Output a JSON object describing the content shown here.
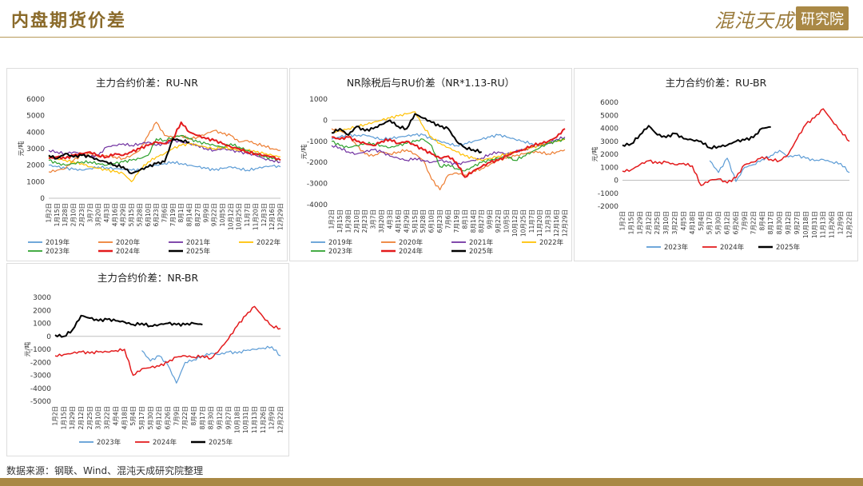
{
  "header": {
    "title": "内盘期货价差",
    "logo_text": "混沌天成",
    "logo_box": "研究院"
  },
  "footer": {
    "source": "数据来源：钢联、Wind、混沌天成研究院整理"
  },
  "colors": {
    "2019": "#5b9bd5",
    "2020": "#ed7d31",
    "2021": "#7030a0",
    "2022": "#ffc000",
    "2023": "#2ca02c",
    "2024": "#e31a1c",
    "2025": "#000000",
    "2023b": "#5b9bd5"
  },
  "chart_data": [
    {
      "type": "line",
      "title": "主力合约价差：RU-NR",
      "ylabel": "元/吨",
      "ylim": [
        0,
        6000
      ],
      "yticks": [
        "6000",
        "5000",
        "4000",
        "3000",
        "2000",
        "1000",
        "0"
      ],
      "xticks": [
        "1月2日",
        "1月15日",
        "1月28日",
        "2月10日",
        "2月23日",
        "3月7日",
        "3月20日",
        "4月3日",
        "4月16日",
        "4月29日",
        "5月15日",
        "5月28日",
        "6月10日",
        "6月23日",
        "7月6日",
        "7月19日",
        "8月1日",
        "8月14日",
        "8月27日",
        "9月9日",
        "9月22日",
        "10月5日",
        "10月12日",
        "10月25日",
        "11月7日",
        "11月20日",
        "12月3日",
        "12月16日",
        "12月29日"
      ],
      "legend": "bottom",
      "series": [
        {
          "name": "2019年",
          "color": "#5b9bd5",
          "values": [
            2000,
            1900,
            1800,
            1750,
            1700,
            1800,
            1900,
            1850,
            1800,
            1750,
            1700,
            1700,
            1900,
            2000,
            2100,
            2200,
            2100,
            2000,
            1900,
            1800,
            1700,
            1800,
            1900,
            1800,
            1700,
            1800,
            1900,
            1950,
            1900
          ],
          "width": 1.2
        },
        {
          "name": "2020年",
          "color": "#ed7d31",
          "values": [
            1600,
            1700,
            1800,
            2300,
            2600,
            2700,
            2500,
            2600,
            2500,
            2400,
            2600,
            2900,
            3800,
            4600,
            3800,
            3700,
            3800,
            3600,
            3700,
            3900,
            4100,
            3900,
            3800,
            3400,
            3500,
            3300,
            3200,
            3000,
            2900
          ],
          "width": 1.2
        },
        {
          "name": "2021年",
          "color": "#7030a0",
          "values": [
            2900,
            2800,
            2700,
            2800,
            2700,
            2500,
            2600,
            3100,
            3200,
            3300,
            3200,
            3300,
            3400,
            3200,
            3300,
            3500,
            3400,
            3300,
            3200,
            3000,
            2900,
            3000,
            2900,
            2800,
            2700,
            2600,
            2400,
            2300,
            2200
          ],
          "width": 1.2
        },
        {
          "name": "2022年",
          "color": "#ffc000",
          "values": [
            2500,
            2400,
            2300,
            2200,
            2100,
            1900,
            1800,
            1700,
            1600,
            1500,
            1000,
            1700,
            2200,
            2500,
            2700,
            3000,
            3200,
            3300,
            3200,
            3100,
            3000,
            3100,
            3000,
            2900,
            2900,
            2800,
            2700,
            2600,
            2500
          ],
          "width": 1.2
        },
        {
          "name": "2023年",
          "color": "#2ca02c",
          "values": [
            2300,
            2100,
            2000,
            2100,
            2200,
            2200,
            2100,
            2000,
            2100,
            2200,
            2300,
            2400,
            2600,
            3600,
            3500,
            3700,
            3800,
            3600,
            3400,
            3300,
            3200,
            3100,
            3300,
            3100,
            2900,
            2700,
            2500,
            2400,
            2300
          ],
          "width": 1.2
        },
        {
          "name": "2024年",
          "color": "#e31a1c",
          "values": [
            2400,
            2500,
            2400,
            2600,
            2700,
            2800,
            2600,
            2500,
            2700,
            2600,
            2800,
            3000,
            3200,
            3400,
            3300,
            3600,
            4600,
            4000,
            3800,
            3600,
            3500,
            3300,
            3100,
            3000,
            2800,
            2700,
            2600,
            2500,
            2300
          ],
          "width": 2
        },
        {
          "name": "2025年",
          "color": "#000000",
          "values": [
            2600,
            2400,
            2700,
            2500,
            2600,
            2500,
            2300,
            2200,
            2000,
            1900,
            1500,
            1700,
            1900,
            2100,
            2200,
            3600,
            3500,
            3400,
            null,
            null,
            null,
            null,
            null,
            null,
            null,
            null,
            null,
            null,
            null
          ],
          "width": 2
        }
      ]
    },
    {
      "type": "line",
      "title": "NR除税后与RU价差（NR*1.13-RU）",
      "ylabel": "元/吨",
      "ylim": [
        -4000,
        1000
      ],
      "yticks": [
        "1000",
        "0",
        "-1000",
        "-2000",
        "-3000",
        "-4000"
      ],
      "xticks": [
        "1月2日",
        "1月15日",
        "1月28日",
        "2月10日",
        "2月23日",
        "3月7日",
        "3月20日",
        "4月3日",
        "4月16日",
        "4月29日",
        "5月15日",
        "5月28日",
        "6月10日",
        "6月23日",
        "7月6日",
        "7月19日",
        "8月1日",
        "8月14日",
        "8月27日",
        "9月9日",
        "9月22日",
        "10月5日",
        "10月12日",
        "10月25日",
        "11月7日",
        "11月20日",
        "12月3日",
        "12月16日",
        "12月29日"
      ],
      "legend": "bottom",
      "series": [
        {
          "name": "2019年",
          "color": "#5b9bd5",
          "values": [
            -900,
            -800,
            -700,
            -750,
            -700,
            -800,
            -900,
            -850,
            -800,
            -750,
            -700,
            -700,
            -900,
            -1000,
            -1100,
            -1200,
            -1100,
            -1000,
            -900,
            -800,
            -700,
            -800,
            -900,
            -1000,
            -1100,
            -1200,
            -1100,
            -1000,
            -900
          ],
          "width": 1.2
        },
        {
          "name": "2020年",
          "color": "#ed7d31",
          "values": [
            -400,
            -500,
            -700,
            -1200,
            -1600,
            -1700,
            -1500,
            -1600,
            -1500,
            -1400,
            -1600,
            -1900,
            -2800,
            -3300,
            -2600,
            -2500,
            -2600,
            -2400,
            -2300,
            -2100,
            -1900,
            -1800,
            -1700,
            -1600,
            -1500,
            -1500,
            -1600,
            -1500,
            -1400
          ],
          "width": 1.2
        },
        {
          "name": "2021年",
          "color": "#7030a0",
          "values": [
            -1200,
            -1300,
            -1500,
            -1600,
            -1500,
            -1400,
            -1500,
            -1700,
            -1800,
            -1900,
            -1800,
            -1900,
            -2000,
            -1900,
            -2000,
            -2100,
            -2000,
            -1900,
            -1800,
            -1600,
            -1500,
            -1600,
            -1500,
            -1400,
            -1300,
            -1200,
            -1100,
            -900,
            -800
          ],
          "width": 1.2
        },
        {
          "name": "2022年",
          "color": "#ffc000",
          "values": [
            -600,
            -500,
            -400,
            -300,
            -200,
            -100,
            0,
            100,
            200,
            300,
            400,
            -300,
            -800,
            -1100,
            -1300,
            -1500,
            -1700,
            -1800,
            -1900,
            -1800,
            -1700,
            -1600,
            -1500,
            -1400,
            -1300,
            -1200,
            -1100,
            -1000,
            -900
          ],
          "width": 1.2
        },
        {
          "name": "2023年",
          "color": "#2ca02c",
          "values": [
            -1000,
            -1200,
            -1300,
            -1200,
            -1100,
            -1100,
            -1200,
            -1300,
            -1200,
            -1100,
            -1000,
            -900,
            -1200,
            -2200,
            -2100,
            -2300,
            -2400,
            -2200,
            -2000,
            -1900,
            -1800,
            -1700,
            -1900,
            -1700,
            -1500,
            -1300,
            -1100,
            -1000,
            -900
          ],
          "width": 1.2
        },
        {
          "name": "2024年",
          "color": "#e31a1c",
          "values": [
            -800,
            -900,
            -800,
            -1000,
            -1100,
            -1200,
            -1000,
            -900,
            -1100,
            -1000,
            -1200,
            -1400,
            -1600,
            -1800,
            -1700,
            -2000,
            -2700,
            -2400,
            -2200,
            -2000,
            -1900,
            -1700,
            -1500,
            -1400,
            -1200,
            -1100,
            -1000,
            -800,
            -400
          ],
          "width": 2
        },
        {
          "name": "2025年",
          "color": "#000000",
          "values": [
            -600,
            -400,
            -700,
            -300,
            -500,
            -400,
            -200,
            0,
            -300,
            -400,
            300,
            100,
            -100,
            -300,
            -400,
            -1000,
            -1300,
            -1400,
            -1500,
            null,
            null,
            null,
            null,
            null,
            null,
            null,
            null,
            null,
            null
          ],
          "width": 2
        }
      ]
    },
    {
      "type": "line",
      "title": "主力合约价差：RU-BR",
      "ylabel": "元/吨",
      "ylim": [
        -2000,
        6000
      ],
      "yticks": [
        "6000",
        "5000",
        "4000",
        "3000",
        "2000",
        "1000",
        "0",
        "-1000",
        "-2000"
      ],
      "xticks": [
        "1月2日",
        "1月15日",
        "1月29日",
        "2月12日",
        "2月25日",
        "3月10日",
        "3月22日",
        "4月5日",
        "4月18日",
        "5月4日",
        "5月17日",
        "5月30日",
        "6月12日",
        "6月26日",
        "7月9日",
        "7月22日",
        "8月4日",
        "8月17日",
        "8月30日",
        "9月12日",
        "9月27日",
        "10月18日",
        "10月31日",
        "11月13日",
        "11月26日",
        "12月9日",
        "12月22日"
      ],
      "legend": "bottom",
      "series": [
        {
          "name": "2023年",
          "color": "#5b9bd5",
          "values": [
            null,
            null,
            null,
            null,
            null,
            null,
            null,
            null,
            null,
            null,
            1500,
            600,
            1700,
            -100,
            1000,
            1200,
            1600,
            1900,
            2300,
            1800,
            1900,
            1700,
            1500,
            1600,
            1400,
            1300,
            600
          ],
          "width": 1.2
        },
        {
          "name": "2024年",
          "color": "#e31a1c",
          "values": [
            700,
            800,
            1200,
            1500,
            1300,
            1400,
            1200,
            1300,
            1100,
            -400,
            0,
            100,
            -200,
            200,
            1200,
            1400,
            1800,
            1600,
            1500,
            2000,
            3200,
            4300,
            4800,
            5500,
            4600,
            3800,
            3000
          ],
          "width": 1.5
        },
        {
          "name": "2025年",
          "color": "#000000",
          "values": [
            2700,
            2800,
            3500,
            4200,
            3500,
            3300,
            3600,
            3200,
            3100,
            3000,
            2500,
            2600,
            2700,
            3000,
            3100,
            3300,
            4000,
            4100,
            null,
            null,
            null,
            null,
            null,
            null,
            null,
            null,
            null
          ],
          "width": 2
        }
      ]
    },
    {
      "type": "line",
      "title": "主力合约价差：NR-BR",
      "ylabel": "元/吨",
      "ylim": [
        -5000,
        3000
      ],
      "yticks": [
        "3000",
        "2000",
        "1000",
        "0",
        "-1000",
        "-2000",
        "-3000",
        "-4000",
        "-5000"
      ],
      "xticks": [
        "1月2日",
        "1月15日",
        "1月29日",
        "2月12日",
        "2月25日",
        "3月10日",
        "3月22日",
        "4月4日",
        "4月18日",
        "5月4日",
        "5月17日",
        "5月30日",
        "6月12日",
        "6月26日",
        "7月9日",
        "7月22日",
        "8月4日",
        "8月17日",
        "8月30日",
        "9月12日",
        "9月27日",
        "10月18日",
        "10月31日",
        "11月13日",
        "11月26日",
        "12月9日",
        "12月22日"
      ],
      "legend": "bottom",
      "series": [
        {
          "name": "2023年",
          "color": "#5b9bd5",
          "values": [
            null,
            null,
            null,
            null,
            null,
            null,
            null,
            null,
            null,
            null,
            -1100,
            -1900,
            -1500,
            -2200,
            -3600,
            -2000,
            -1800,
            -1500,
            -1300,
            -1400,
            -1200,
            -1300,
            -1100,
            -1000,
            -900,
            -800,
            -1500
          ],
          "width": 1.2
        },
        {
          "name": "2024年",
          "color": "#e31a1c",
          "values": [
            -1500,
            -1400,
            -1300,
            -1200,
            -1300,
            -1200,
            -1200,
            -1100,
            -1000,
            -3000,
            -2500,
            -2400,
            -2300,
            -2000,
            -1600,
            -1500,
            -1600,
            -1500,
            -1700,
            -1000,
            -200,
            800,
            1600,
            2300,
            1500,
            800,
            600
          ],
          "width": 1.5
        },
        {
          "name": "2025年",
          "color": "#000000",
          "values": [
            100,
            0,
            500,
            1600,
            1400,
            1200,
            1300,
            1200,
            1100,
            900,
            1000,
            800,
            900,
            1000,
            900,
            900,
            1000,
            900,
            null,
            null,
            null,
            null,
            null,
            null,
            null,
            null,
            null
          ],
          "width": 2
        }
      ]
    }
  ]
}
